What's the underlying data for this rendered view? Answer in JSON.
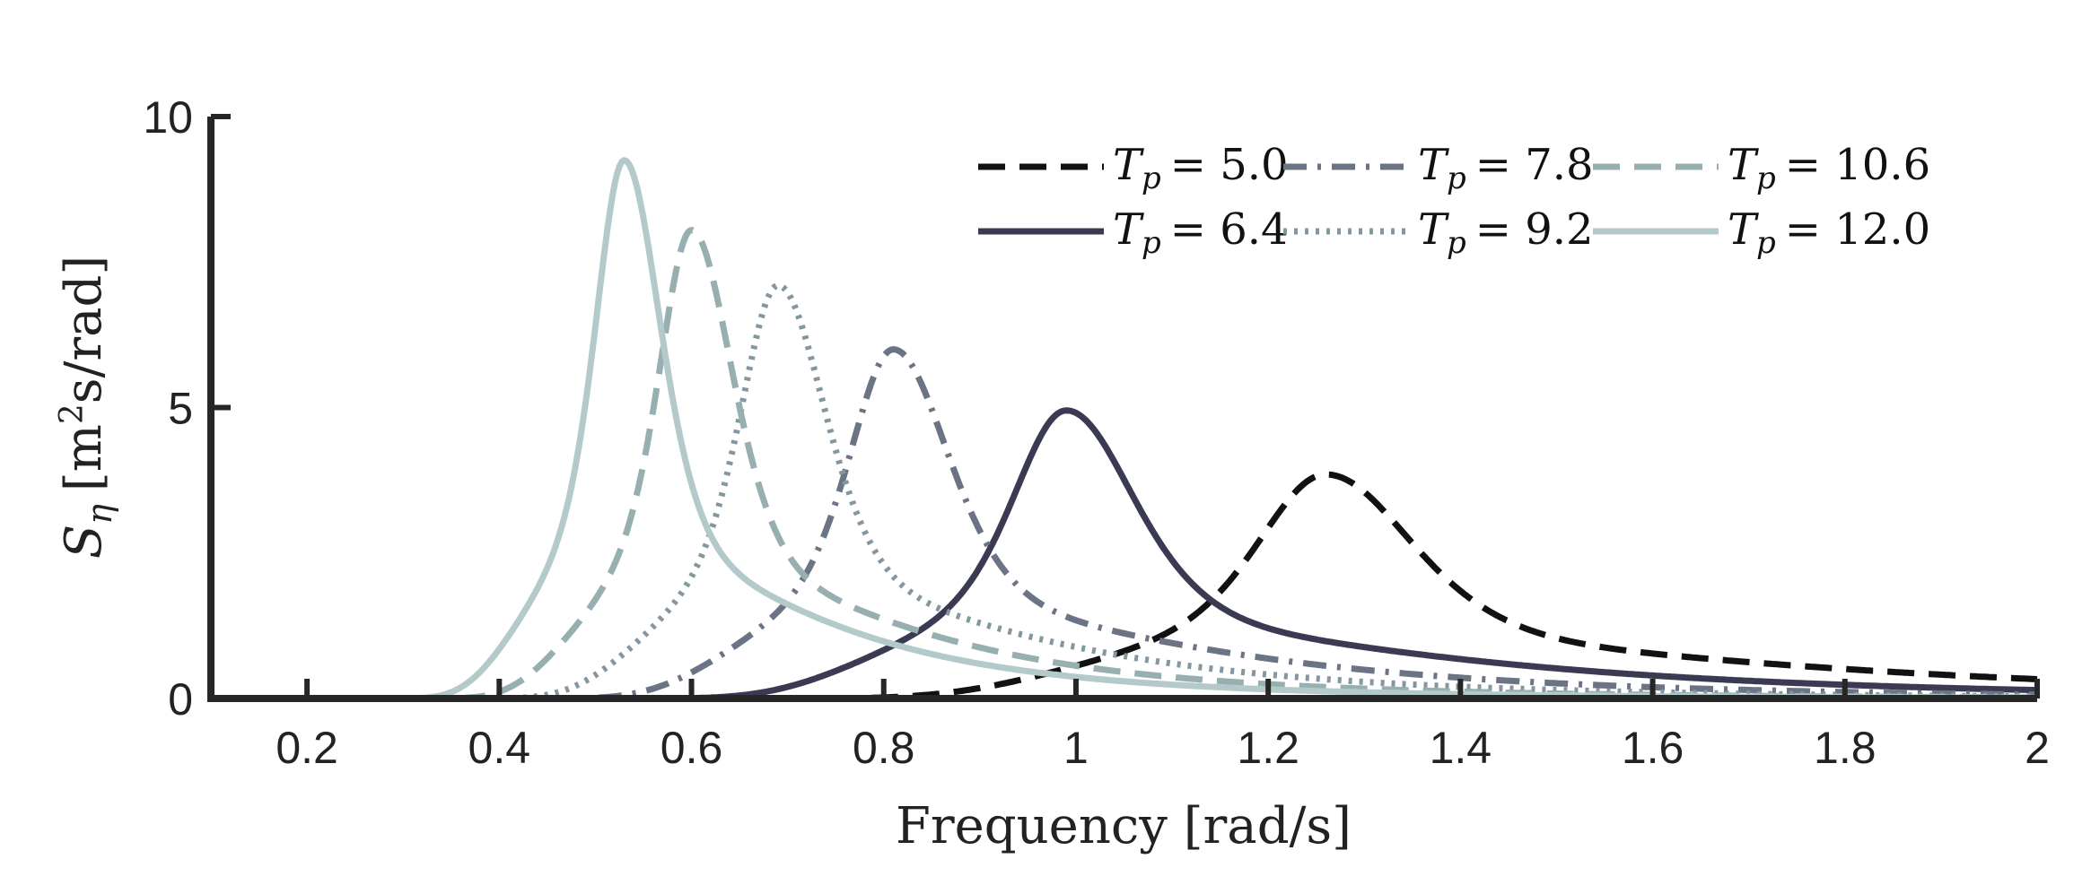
{
  "chart_data": {
    "type": "line",
    "title": "",
    "xlabel": "Frequency [rad/s]",
    "ylabel": "S_η [m²s/rad]",
    "ylabel_parts": {
      "base": "S",
      "sub": "η",
      "unit_a": "[m",
      "sup": "2",
      "unit_b": "s/rad]"
    },
    "xlim": [
      0.1,
      2.0
    ],
    "ylim": [
      0,
      10
    ],
    "xticks": [
      0.2,
      0.4,
      0.6,
      0.8,
      1,
      1.2,
      1.4,
      1.6,
      1.8,
      2
    ],
    "xtick_labels": [
      "0.2",
      "0.4",
      "0.6",
      "0.8",
      "1",
      "1.2",
      "1.4",
      "1.6",
      "1.8",
      "2"
    ],
    "yticks": [
      0,
      5,
      10
    ],
    "ytick_labels": [
      "0",
      "5",
      "10"
    ],
    "grid": false,
    "legend_position": "top-right",
    "series": [
      {
        "name": "T_p = 5.0",
        "label_var": "T",
        "label_sub": "p",
        "label_val": "= 5.0",
        "peak_freq": 1.26,
        "peak_value": 3.85,
        "color": "#111111",
        "dash": "dashed"
      },
      {
        "name": "T_p = 6.4",
        "label_var": "T",
        "label_sub": "p",
        "label_val": "= 6.4",
        "peak_freq": 0.99,
        "peak_value": 4.95,
        "color": "#3a3a52",
        "dash": "solid"
      },
      {
        "name": "T_p = 7.8",
        "label_var": "T",
        "label_sub": "p",
        "label_val": "= 7.8",
        "peak_freq": 0.81,
        "peak_value": 6.0,
        "color": "#6a7484",
        "dash": "dashdot"
      },
      {
        "name": "T_p = 9.2",
        "label_var": "T",
        "label_sub": "p",
        "label_val": "= 9.2",
        "peak_freq": 0.69,
        "peak_value": 7.1,
        "color": "#8497a0",
        "dash": "dotted"
      },
      {
        "name": "T_p = 10.6",
        "label_var": "T",
        "label_sub": "p",
        "label_val": "= 10.6",
        "peak_freq": 0.6,
        "peak_value": 8.05,
        "color": "#98afb2",
        "dash": "dashed"
      },
      {
        "name": "T_p = 12.0",
        "label_var": "T",
        "label_sub": "p",
        "label_val": "= 12.0",
        "peak_freq": 0.53,
        "peak_value": 9.25,
        "color": "#b4c9ca",
        "dash": "solid"
      }
    ]
  }
}
